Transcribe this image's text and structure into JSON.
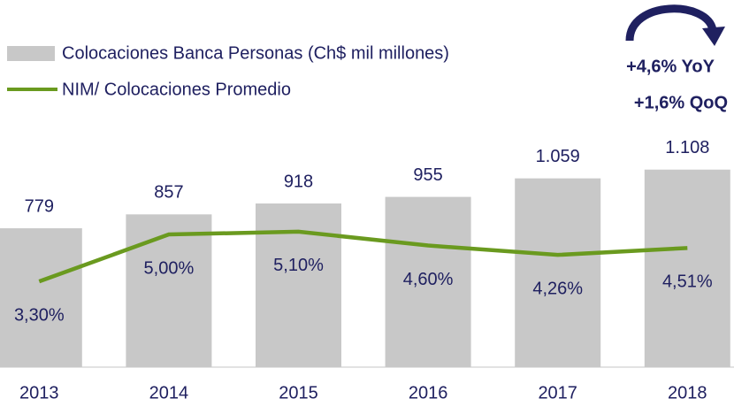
{
  "chart_data": {
    "type": "bar",
    "categories": [
      "2013",
      "2014",
      "2015",
      "2016",
      "2017",
      "2018"
    ],
    "series": [
      {
        "name": "Colocaciones Banca Personas (Ch$ mil millones)",
        "type": "bar",
        "color": "#c8c8c8",
        "values": [
          779,
          857,
          918,
          955,
          1059,
          1108
        ],
        "value_labels": [
          "779",
          "857",
          "918",
          "955",
          "1.059",
          "1.108"
        ]
      },
      {
        "name": "NIM/ Colocaciones Promedio",
        "type": "line",
        "axis": "y2",
        "color": "#6a9a1f",
        "values": [
          3.3,
          5.0,
          5.1,
          4.6,
          4.26,
          4.51
        ],
        "value_labels": [
          "3,30%",
          "5,00%",
          "5,10%",
          "4,60%",
          "4,26%",
          "4,51%"
        ]
      }
    ],
    "ylim": [
      0,
      2000
    ],
    "y2lim": [
      0.2,
      13.1
    ],
    "annotations": [
      "+4,6% YoY",
      "+1,6% QoQ"
    ]
  }
}
